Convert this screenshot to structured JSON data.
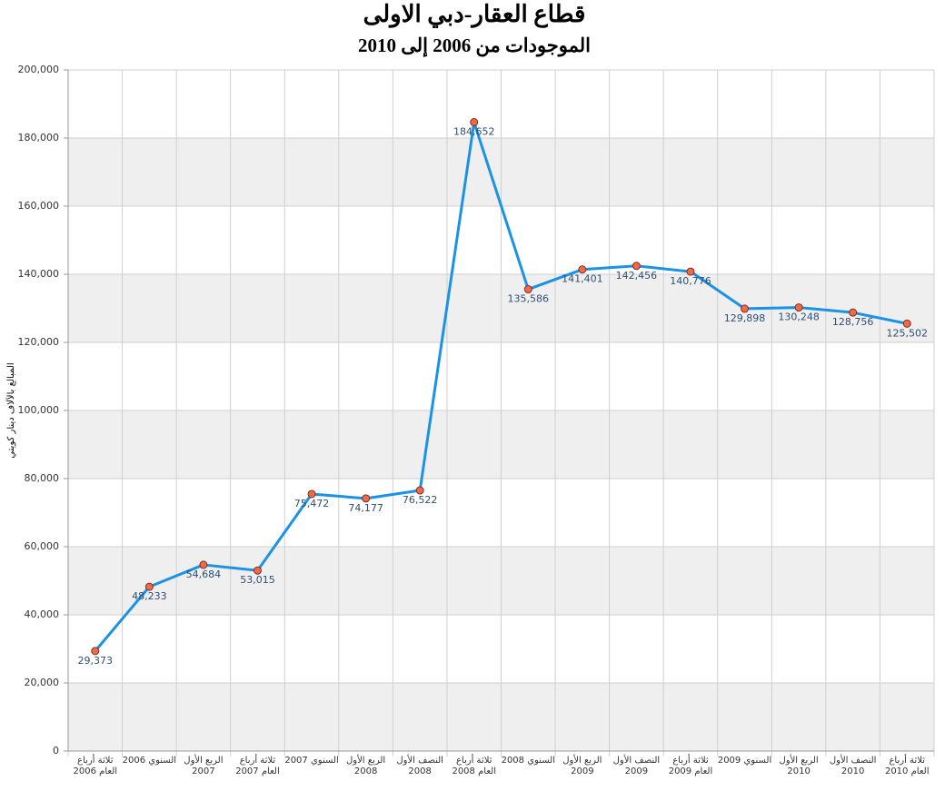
{
  "chart_data": {
    "type": "line",
    "title": "قطاع العقار-دبي الاولى",
    "subtitle": "الموجودات من 2006 إلى 2010",
    "y_label": "المبالغ بالآلاف دينار كويتي",
    "categories": [
      "ثلاثة أرباع\nالعام 2006",
      "السنوي 2006",
      "الربع الأول\n2007",
      "ثلاثة أرباع\nالعام 2007",
      "السنوي 2007",
      "الربع الأول\n2008",
      "النصف الأول\n2008",
      "ثلاثة أرباع\nالعام 2008",
      "السنوي 2008",
      "الربع الأول\n2009",
      "النصف الأول\n2009",
      "ثلاثة أرباع\nالعام 2009",
      "السنوي 2009",
      "الربع الأول\n2010",
      "النصف الأول\n2010",
      "ثلاثة أرباع\nالعام 2010"
    ],
    "values": [
      29373,
      48233,
      54684,
      53015,
      75472,
      74177,
      76522,
      184652,
      135586,
      141401,
      142456,
      140776,
      129898,
      130248,
      128756,
      125502
    ],
    "value_labels": [
      "29,373",
      "48,233",
      "54,684",
      "53,015",
      "75,472",
      "74,177",
      "76,522",
      "184,652",
      "135,586",
      "141,401",
      "142,456",
      "140,776",
      "129,898",
      "130,248",
      "128,756",
      "125,502"
    ],
    "color": "#1a93e6",
    "marker_color": "#f2684a",
    "ylim": [
      0,
      200000
    ],
    "yticks": [
      0,
      {
        "value": 20000,
        "label": "20,000"
      },
      {
        "value": 40000,
        "label": "40,000"
      },
      {
        "value": 60000,
        "label": "60,000"
      },
      {
        "value": 80000,
        "label": "80,000"
      },
      {
        "value": 100000,
        "label": "100,000"
      },
      {
        "value": 120000,
        "label": "120,000"
      },
      {
        "value": 140000,
        "label": "140,000"
      },
      {
        "value": 160000,
        "label": "160,000"
      },
      {
        "value": 180000,
        "label": "180,000"
      },
      {
        "value": 200000,
        "label": "200,000"
      }
    ],
    "grid": true
  }
}
